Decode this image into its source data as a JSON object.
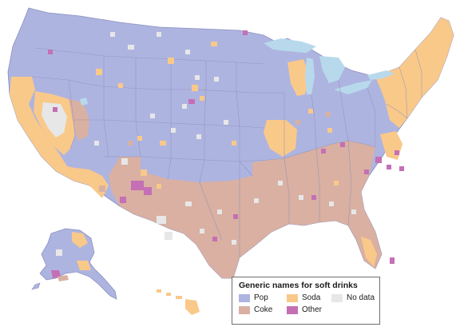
{
  "legend": {
    "title": "Generic names for soft drinks",
    "items": [
      {
        "label": "Pop",
        "color": "#aeb4e0"
      },
      {
        "label": "Soda",
        "color": "#f9c98a"
      },
      {
        "label": "No data",
        "color": "#e7e7e7"
      },
      {
        "label": "Coke",
        "color": "#d9b0a2"
      },
      {
        "label": "Other",
        "color": "#c56fb5"
      }
    ]
  },
  "colors": {
    "pop": "#aeb4e0",
    "soda": "#f9c98a",
    "coke": "#d9b0a2",
    "other": "#c56fb5",
    "no_data": "#e7e7e7",
    "water": "#b8d9ec",
    "border": "#7e7e9c"
  }
}
